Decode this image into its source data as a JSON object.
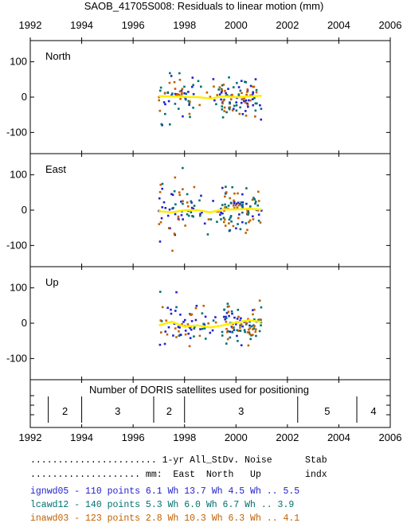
{
  "chart_data": {
    "type": "scatter",
    "title": "SAOB_41705S008: Residuals to linear motion (mm)",
    "x_ticks": [
      "1992",
      "1994",
      "1996",
      "1998",
      "2000",
      "2002",
      "2004",
      "2006"
    ],
    "xlim": [
      1992,
      2006
    ],
    "panels": [
      {
        "label": "North",
        "ylim": [
          -160,
          160
        ],
        "y_ticks": [
          "100",
          "0",
          "-100"
        ]
      },
      {
        "label": "East",
        "ylim": [
          -160,
          160
        ],
        "y_ticks": [
          "100",
          "0",
          "-100"
        ]
      },
      {
        "label": "Up",
        "ylim": [
          -160,
          160
        ],
        "y_ticks": [
          "100",
          "0",
          "-100"
        ]
      }
    ],
    "series": [
      {
        "name": "ignwd05",
        "color": "#2222cc"
      },
      {
        "name": "lcawd12",
        "color": "#007070"
      },
      {
        "name": "inawd03",
        "color": "#c06000"
      }
    ],
    "data_span": [
      1997.0,
      2001.0
    ],
    "trend_color": "#ffee00",
    "trend": {
      "x": [
        1997.0,
        1997.5,
        1998.0,
        1998.5,
        1999.0,
        1999.5,
        2000.0,
        2000.5,
        2001.0
      ],
      "North": [
        3,
        2,
        1,
        0,
        -4,
        2,
        0,
        2,
        4
      ],
      "East": [
        -3,
        -6,
        0,
        0,
        -6,
        2,
        2,
        4,
        2
      ],
      "Up": [
        -6,
        4,
        -10,
        -6,
        -12,
        -6,
        2,
        8,
        4
      ]
    },
    "doris": {
      "caption": "Number of DORIS satellites used for positioning",
      "segments": [
        {
          "start": 1992.7,
          "end": 1994.0,
          "count": "2"
        },
        {
          "start": 1994.0,
          "end": 1996.8,
          "count": "3"
        },
        {
          "start": 1996.8,
          "end": 1998.0,
          "count": "2"
        },
        {
          "start": 1998.0,
          "end": 2002.4,
          "count": "3"
        },
        {
          "start": 2002.4,
          "end": 2004.7,
          "count": "5"
        },
        {
          "start": 2004.7,
          "end": 2006.0,
          "count": "4"
        }
      ]
    },
    "stats": {
      "header1": "....................... 1-yr All_StDv. Noise      Stab",
      "header2": ".................... mm:  East  North   Up        indx",
      "rows": [
        {
          "text": "ignwd05 - 110 points   6.1 Wh 13.7 Wh  4.5 Wh ..  5.5",
          "color": "#2222cc"
        },
        {
          "text": "lcawd12 - 140 points   5.3 Wh  6.0 Wh  6.7 Wh ..  3.9",
          "color": "#007070"
        },
        {
          "text": "inawd03 - 123 points   2.8 Wh 10.3 Wh  6.3 Wh ..  4.1",
          "color": "#c06000"
        }
      ]
    }
  }
}
